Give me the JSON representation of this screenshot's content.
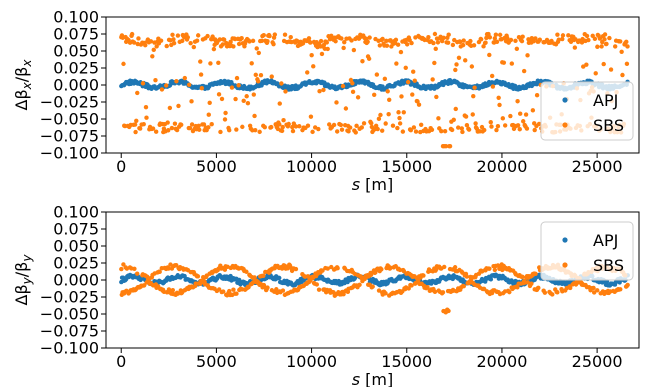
{
  "chart_data": [
    {
      "type": "scatter",
      "ylabel_parts": [
        "Δβ",
        "x",
        "/β",
        "x"
      ],
      "xlabel_italic": "s",
      "xlabel_rest": " [m]",
      "xlim": [
        -800,
        27200
      ],
      "ylim": [
        -0.1,
        0.1
      ],
      "x_ticks": [
        0,
        5000,
        10000,
        15000,
        20000,
        25000
      ],
      "x_tick_labels": [
        "0",
        "5000",
        "10000",
        "15000",
        "20000",
        "25000"
      ],
      "y_ticks": [
        0.1,
        0.075,
        0.05,
        0.025,
        0.0,
        -0.025,
        -0.05,
        -0.075,
        -0.1
      ],
      "y_tick_labels": [
        "0.100",
        "0.075",
        "0.050",
        "0.025",
        "0.000",
        "−0.025",
        "−0.050",
        "−0.075",
        "−0.100"
      ],
      "legend": "right",
      "grid": false,
      "series": [
        {
          "name": "APJ",
          "color": "#1f77b4",
          "pattern": "apj_x",
          "x_range": [
            0,
            26600
          ],
          "amplitude": 0.007,
          "count": 520
        },
        {
          "name": "SBS",
          "color": "#ff7f0e",
          "pattern": "sbs_x",
          "x_range": [
            0,
            26600
          ],
          "amplitude": 0.075,
          "count": 700
        }
      ]
    },
    {
      "type": "scatter",
      "ylabel_parts": [
        "Δβ",
        "y",
        "/β",
        "y"
      ],
      "xlabel_italic": "s",
      "xlabel_rest": " [m]",
      "xlim": [
        -800,
        27200
      ],
      "ylim": [
        -0.1,
        0.1
      ],
      "x_ticks": [
        0,
        5000,
        10000,
        15000,
        20000,
        25000
      ],
      "x_tick_labels": [
        "0",
        "5000",
        "10000",
        "15000",
        "20000",
        "25000"
      ],
      "y_ticks": [
        0.1,
        0.075,
        0.05,
        0.025,
        0.0,
        -0.025,
        -0.05,
        -0.075,
        -0.1
      ],
      "y_tick_labels": [
        "0.100",
        "0.075",
        "0.050",
        "0.025",
        "0.000",
        "−0.025",
        "−0.050",
        "−0.075",
        "−0.100"
      ],
      "legend": "top-right",
      "grid": false,
      "series": [
        {
          "name": "APJ",
          "color": "#1f77b4",
          "pattern": "apj_y",
          "x_range": [
            0,
            26600
          ],
          "amplitude": 0.008,
          "count": 520
        },
        {
          "name": "SBS",
          "color": "#ff7f0e",
          "pattern": "sbs_y",
          "x_range": [
            0,
            26600
          ],
          "amplitude": 0.02,
          "count": 700
        }
      ]
    }
  ]
}
